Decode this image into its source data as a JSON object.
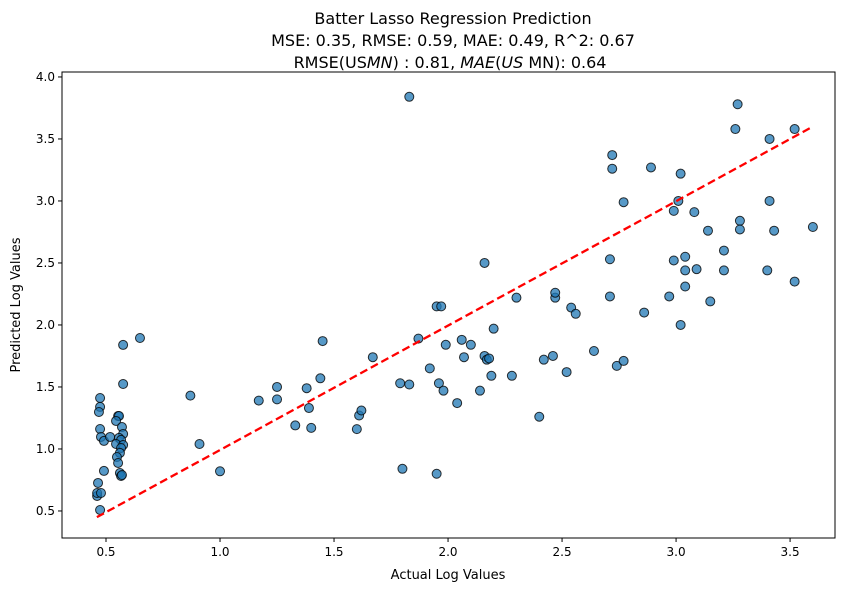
{
  "chart_data": {
    "type": "scatter",
    "title": "Batter Lasso Regression Prediction",
    "subtitle_metrics": "MSE: 0.35, RMSE: 0.59, MAE: 0.49, R^2: 0.67",
    "subtitle_us": {
      "p1": "RMSE(US",
      "p2": "MN",
      "p3": ") : 0.81, ",
      "p4": "MAE",
      "p5": "(",
      "p6": "US",
      "p7": " MN): 0.64"
    },
    "xlabel": "Actual Log Values",
    "ylabel": "Predicted Log Values",
    "xlim": [
      0.307,
      3.697
    ],
    "ylim": [
      0.282,
      4.04
    ],
    "xticks": [
      0.5,
      1.0,
      1.5,
      2.0,
      2.5,
      3.0,
      3.5
    ],
    "xtick_labels": [
      "0.5",
      "1.0",
      "1.5",
      "2.0",
      "2.5",
      "3.0",
      "3.5"
    ],
    "yticks": [
      0.5,
      1.0,
      1.5,
      2.0,
      2.5,
      3.0,
      3.5,
      4.0
    ],
    "ytick_labels": [
      "0.5",
      "1.0",
      "1.5",
      "2.0",
      "2.5",
      "3.0",
      "3.5",
      "4.0"
    ],
    "grid": false,
    "point_color": "#1f77b4",
    "line_color": "#ff0000",
    "reference_line": {
      "x": [
        0.46,
        3.6
      ],
      "y": [
        0.45,
        3.6
      ]
    },
    "points": [
      [
        0.474,
        0.508
      ],
      [
        0.461,
        0.621
      ],
      [
        0.461,
        0.645
      ],
      [
        0.478,
        0.645
      ],
      [
        0.465,
        0.726
      ],
      [
        0.491,
        0.823
      ],
      [
        0.474,
        1.411
      ],
      [
        0.474,
        1.339
      ],
      [
        0.469,
        1.298
      ],
      [
        0.474,
        1.161
      ],
      [
        0.478,
        1.097
      ],
      [
        0.491,
        1.065
      ],
      [
        0.518,
        1.097
      ],
      [
        0.575,
        1.839
      ],
      [
        0.649,
        1.895
      ],
      [
        0.575,
        1.524
      ],
      [
        0.553,
        1.266
      ],
      [
        0.557,
        1.266
      ],
      [
        0.544,
        1.226
      ],
      [
        0.57,
        1.177
      ],
      [
        0.575,
        1.121
      ],
      [
        0.557,
        1.089
      ],
      [
        0.566,
        1.073
      ],
      [
        0.544,
        1.04
      ],
      [
        0.575,
        1.032
      ],
      [
        0.566,
        1.008
      ],
      [
        0.561,
        0.968
      ],
      [
        0.548,
        0.935
      ],
      [
        0.553,
        0.887
      ],
      [
        0.561,
        0.806
      ],
      [
        0.566,
        0.782
      ],
      [
        0.57,
        0.79
      ],
      [
        0.87,
        1.43
      ],
      [
        0.91,
        1.04
      ],
      [
        1.0,
        0.82
      ],
      [
        1.17,
        1.39
      ],
      [
        1.25,
        1.5
      ],
      [
        1.25,
        1.4
      ],
      [
        1.33,
        1.19
      ],
      [
        1.38,
        1.49
      ],
      [
        1.39,
        1.33
      ],
      [
        1.4,
        1.17
      ],
      [
        1.44,
        1.57
      ],
      [
        1.45,
        1.87
      ],
      [
        1.6,
        1.16
      ],
      [
        1.61,
        1.27
      ],
      [
        1.62,
        1.31
      ],
      [
        1.67,
        1.74
      ],
      [
        1.79,
        1.53
      ],
      [
        1.8,
        0.84
      ],
      [
        1.83,
        1.52
      ],
      [
        1.83,
        3.84
      ],
      [
        1.87,
        1.89
      ],
      [
        1.92,
        1.65
      ],
      [
        1.95,
        2.15
      ],
      [
        1.95,
        0.8
      ],
      [
        1.96,
        1.53
      ],
      [
        1.97,
        2.15
      ],
      [
        1.98,
        1.47
      ],
      [
        1.99,
        1.84
      ],
      [
        2.04,
        1.37
      ],
      [
        2.06,
        1.88
      ],
      [
        2.07,
        1.74
      ],
      [
        2.1,
        1.84
      ],
      [
        2.14,
        1.47
      ],
      [
        2.16,
        1.75
      ],
      [
        2.16,
        2.5
      ],
      [
        2.17,
        1.72
      ],
      [
        2.18,
        1.73
      ],
      [
        2.19,
        1.59
      ],
      [
        2.2,
        1.97
      ],
      [
        2.28,
        1.59
      ],
      [
        2.3,
        2.22
      ],
      [
        2.4,
        1.26
      ],
      [
        2.42,
        1.72
      ],
      [
        2.46,
        1.75
      ],
      [
        2.47,
        2.22
      ],
      [
        2.47,
        2.26
      ],
      [
        2.52,
        1.62
      ],
      [
        2.54,
        2.14
      ],
      [
        2.56,
        2.09
      ],
      [
        2.64,
        1.79
      ],
      [
        2.71,
        2.53
      ],
      [
        2.71,
        2.23
      ],
      [
        2.72,
        3.37
      ],
      [
        2.72,
        3.26
      ],
      [
        2.74,
        1.67
      ],
      [
        2.77,
        1.71
      ],
      [
        2.77,
        2.99
      ],
      [
        2.86,
        2.1
      ],
      [
        2.89,
        3.27
      ],
      [
        2.97,
        2.23
      ],
      [
        2.99,
        2.92
      ],
      [
        2.99,
        2.52
      ],
      [
        3.01,
        3.0
      ],
      [
        3.02,
        2.0
      ],
      [
        3.02,
        3.22
      ],
      [
        3.04,
        2.55
      ],
      [
        3.04,
        2.44
      ],
      [
        3.04,
        2.31
      ],
      [
        3.08,
        2.91
      ],
      [
        3.09,
        2.45
      ],
      [
        3.14,
        2.76
      ],
      [
        3.15,
        2.19
      ],
      [
        3.21,
        2.6
      ],
      [
        3.21,
        2.44
      ],
      [
        3.26,
        3.58
      ],
      [
        3.27,
        3.78
      ],
      [
        3.28,
        2.84
      ],
      [
        3.28,
        2.77
      ],
      [
        3.4,
        2.44
      ],
      [
        3.41,
        3.5
      ],
      [
        3.41,
        3.0
      ],
      [
        3.43,
        2.76
      ],
      [
        3.52,
        2.35
      ],
      [
        3.52,
        3.58
      ],
      [
        3.6,
        2.79
      ]
    ]
  }
}
